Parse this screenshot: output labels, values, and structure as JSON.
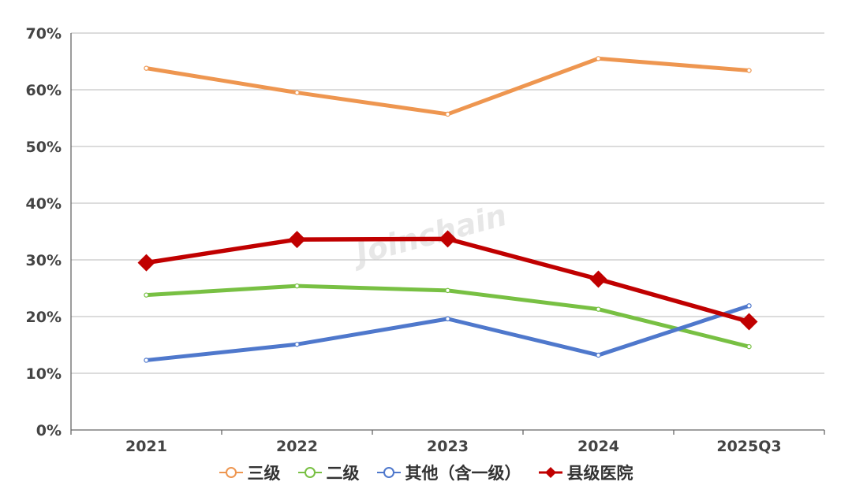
{
  "chart_data": {
    "type": "line",
    "categories": [
      "2021",
      "2022",
      "2023",
      "2024",
      "2025Q3"
    ],
    "yticks": [
      "0%",
      "10%",
      "20%",
      "30%",
      "40%",
      "50%",
      "60%",
      "70%"
    ],
    "ylim": [
      0,
      70
    ],
    "grid": true,
    "legend_position": "bottom",
    "series": [
      {
        "name": "三级",
        "values": [
          63.8,
          59.5,
          55.7,
          65.5,
          63.4
        ],
        "color": "#EE9650",
        "marker": "circle"
      },
      {
        "name": "二级",
        "values": [
          23.8,
          25.4,
          24.6,
          21.3,
          14.7
        ],
        "color": "#78C043",
        "marker": "circle"
      },
      {
        "name": "其他（含一级）",
        "values": [
          12.3,
          15.1,
          19.6,
          13.2,
          21.9
        ],
        "color": "#4F78CC",
        "marker": "circle"
      },
      {
        "name": "县级医院",
        "values": [
          29.5,
          33.6,
          33.7,
          26.6,
          19.1
        ],
        "color": "#C00000",
        "marker": "diamond"
      }
    ]
  }
}
